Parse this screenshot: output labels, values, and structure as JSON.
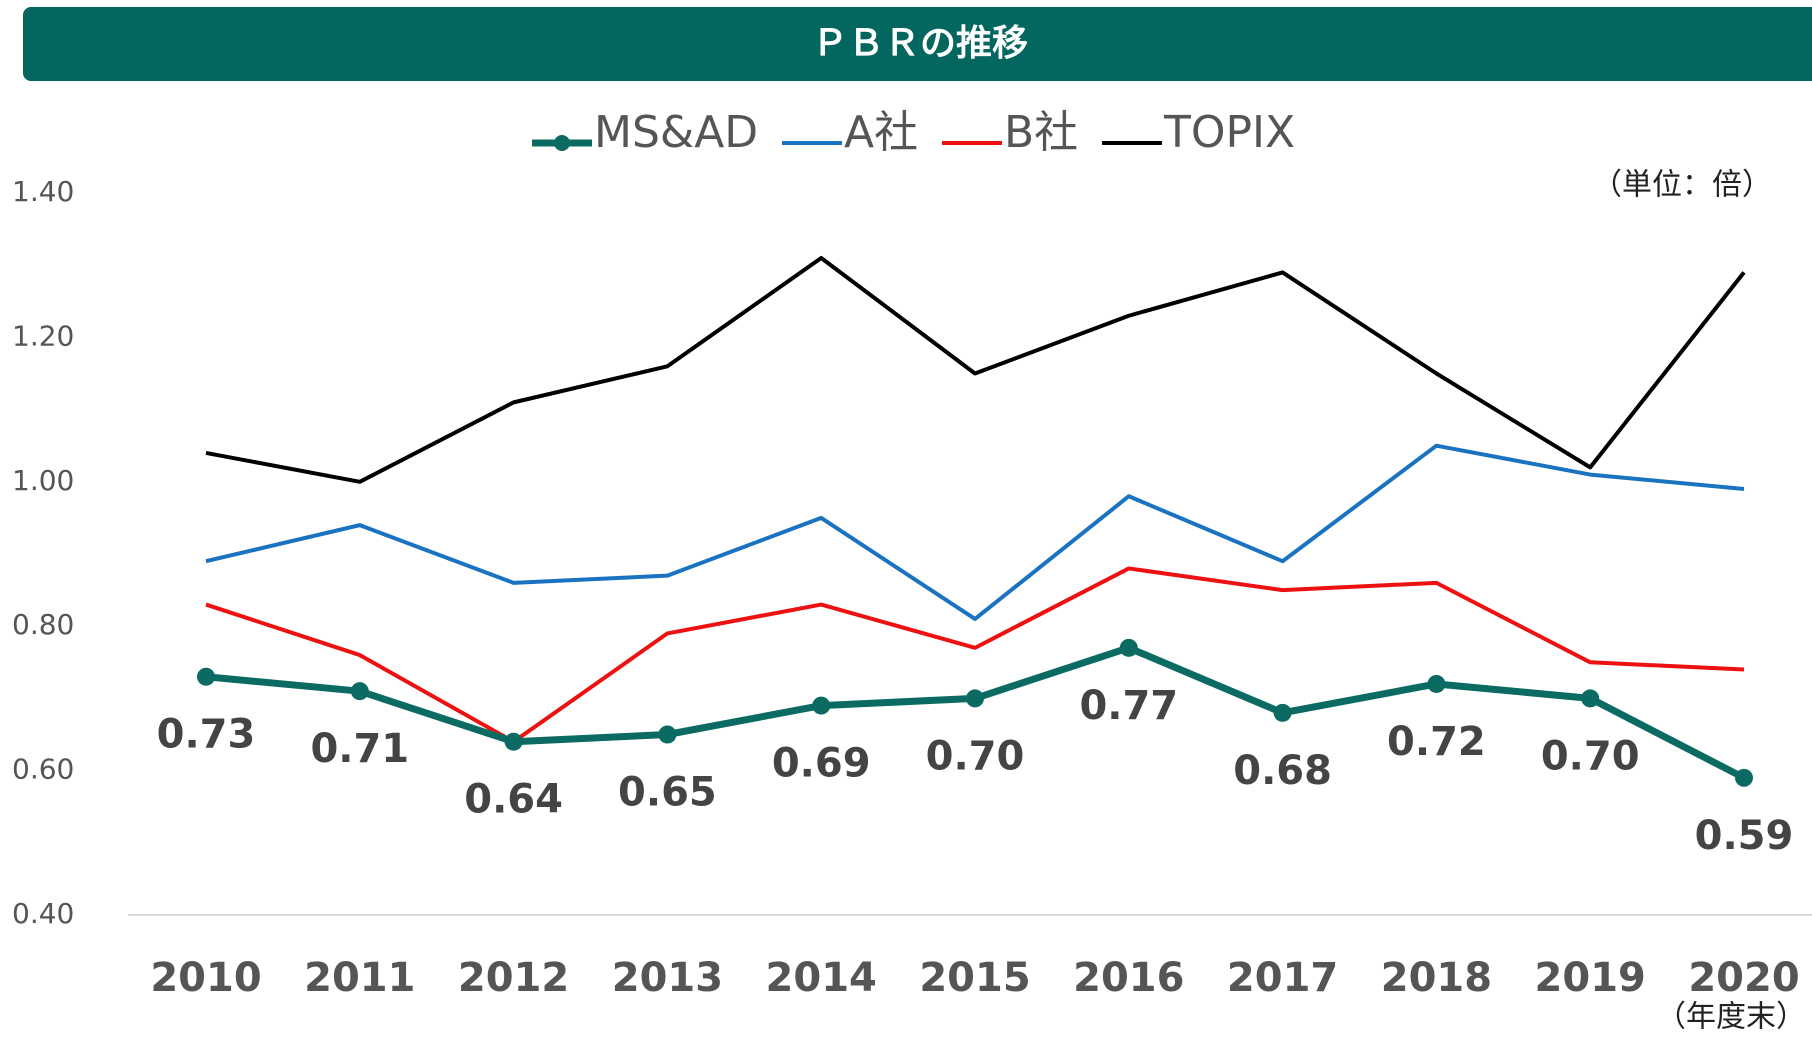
{
  "chart_data": {
    "type": "line",
    "title": "ＰＢＲの推移",
    "unit_note": "（単位：倍）",
    "x_note": "（年度末）",
    "categories": [
      "2010",
      "2011",
      "2012",
      "2013",
      "2014",
      "2015",
      "2016",
      "2017",
      "2018",
      "2019",
      "2020"
    ],
    "series": [
      {
        "name": "MS&AD",
        "color": "#0b6b63",
        "markers": true,
        "values": [
          0.73,
          0.71,
          0.64,
          0.65,
          0.69,
          0.7,
          0.77,
          0.68,
          0.72,
          0.7,
          0.59
        ],
        "value_labels": [
          "0.73",
          "0.71",
          "0.64",
          "0.65",
          "0.69",
          "0.70",
          "0.77",
          "0.68",
          "0.72",
          "0.70",
          "0.59"
        ]
      },
      {
        "name": "A社",
        "color": "#1a73c1",
        "values": [
          0.89,
          0.94,
          0.86,
          0.87,
          0.95,
          0.81,
          0.98,
          0.89,
          1.05,
          1.01,
          0.99
        ]
      },
      {
        "name": "B社",
        "color": "#ee1111",
        "values": [
          0.83,
          0.76,
          0.64,
          0.79,
          0.83,
          0.77,
          0.88,
          0.85,
          0.86,
          0.75,
          0.74
        ]
      },
      {
        "name": "TOPIX",
        "color": "#000000",
        "values": [
          1.04,
          1.0,
          1.11,
          1.16,
          1.31,
          1.15,
          1.23,
          1.29,
          1.15,
          1.02,
          1.29
        ]
      }
    ],
    "ylim": [
      0.4,
      1.4
    ],
    "yticks": [
      {
        "value": 0.4,
        "label": "0.40"
      },
      {
        "value": 0.6,
        "label": "0.60"
      },
      {
        "value": 0.8,
        "label": "0.80"
      },
      {
        "value": 1.0,
        "label": "1.00"
      },
      {
        "value": 1.2,
        "label": "1.20"
      },
      {
        "value": 1.4,
        "label": "1.40"
      }
    ],
    "legend": "top"
  }
}
